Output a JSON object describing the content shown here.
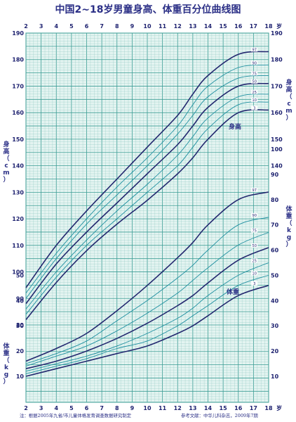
{
  "title": "中国2~18岁男童身高、体重百分位曲线图",
  "age_unit": "岁",
  "x_ticks": [
    "2",
    "3",
    "4",
    "5",
    "6",
    "7",
    "8",
    "9",
    "10",
    "11",
    "12",
    "13",
    "14",
    "15",
    "16",
    "17",
    "18"
  ],
  "height_axis": {
    "label": "身高（cm）",
    "ticks": [
      "80",
      "90",
      "100",
      "110",
      "120",
      "130",
      "140",
      "150",
      "160",
      "170",
      "180",
      "190"
    ]
  },
  "weight_axis": {
    "label": "体重（kg）",
    "ticks": [
      "10",
      "20",
      "30",
      "40",
      "50",
      "60",
      "70",
      "80",
      "90",
      "100"
    ]
  },
  "height_curve_label": "身高",
  "weight_curve_label": "体重",
  "footnote_left": "注：根据2005年九省/市儿童体格发育调查数据研究制定",
  "footnote_right": "参考文献：中华儿科杂志，2009年7期",
  "colors": {
    "grid": "#8cc8c0",
    "grid_major": "#3a9c94",
    "background": "#e4f4f1",
    "title": "#2b2f86",
    "curve_outer": "#23286f",
    "curve_inner": "#1e8fa0"
  },
  "chart_data": {
    "type": "line",
    "x": [
      2,
      4,
      6,
      8,
      10,
      12,
      13,
      14,
      16,
      18
    ],
    "xlim": [
      2,
      18
    ],
    "height_ylim": [
      80,
      190
    ],
    "weight_ylim": [
      10,
      100
    ],
    "height_series": [
      {
        "name": "3",
        "values": [
          82,
          96,
          108,
          118,
          127,
          137,
          143,
          150,
          160,
          161
        ]
      },
      {
        "name": "10",
        "values": [
          84,
          98,
          110,
          120,
          130,
          140,
          147,
          154,
          163,
          164
        ]
      },
      {
        "name": "25",
        "values": [
          86,
          100,
          112,
          123,
          133,
          144,
          151,
          158,
          166,
          167
        ]
      },
      {
        "name": "50",
        "values": [
          88,
          103,
          115,
          126,
          137,
          148,
          155,
          162,
          170,
          171
        ]
      },
      {
        "name": "75",
        "values": [
          90,
          105,
          118,
          129,
          140,
          152,
          159,
          166,
          173,
          174
        ]
      },
      {
        "name": "90",
        "values": [
          92,
          107,
          120,
          132,
          143,
          155,
          163,
          170,
          177,
          178
        ]
      },
      {
        "name": "97",
        "values": [
          94,
          110,
          123,
          135,
          147,
          159,
          167,
          174,
          182,
          183
        ]
      }
    ],
    "weight_series": [
      {
        "name": "3",
        "values": [
          10,
          13,
          16,
          19,
          22,
          27,
          30,
          34,
          42,
          46
        ]
      },
      {
        "name": "10",
        "values": [
          11,
          14,
          17,
          21,
          24,
          30,
          34,
          38,
          46,
          50
        ]
      },
      {
        "name": "25",
        "values": [
          12,
          15,
          18,
          22,
          27,
          33,
          37,
          42,
          50,
          55
        ]
      },
      {
        "name": "50",
        "values": [
          13,
          16,
          20,
          25,
          31,
          38,
          42,
          47,
          56,
          61
        ]
      },
      {
        "name": "75",
        "values": [
          14,
          18,
          22,
          28,
          35,
          43,
          48,
          53,
          62,
          67
        ]
      },
      {
        "name": "90",
        "values": [
          15,
          19,
          24,
          32,
          40,
          49,
          54,
          60,
          70,
          73
        ]
      },
      {
        "name": "97",
        "values": [
          16,
          21,
          27,
          36,
          46,
          57,
          63,
          70,
          80,
          83
        ]
      }
    ]
  }
}
